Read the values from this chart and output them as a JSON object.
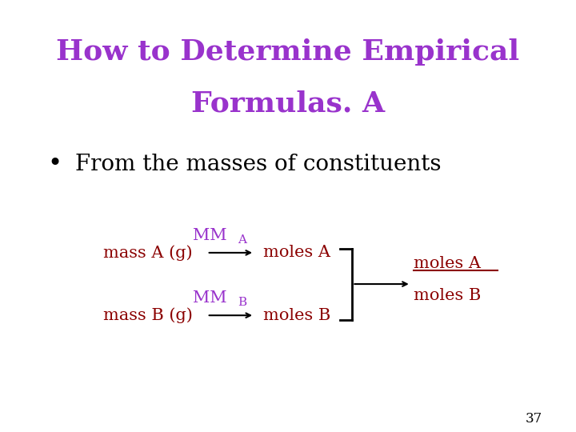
{
  "title_line1": "How to Determine Empirical",
  "title_line2": "Formulas. A",
  "title_color": "#9933CC",
  "bullet_text": "From the masses of constituents",
  "background_color": "#FFFFFF",
  "page_number": "37",
  "dark_red": "#8B0000",
  "purple": "#9933CC",
  "black": "#000000"
}
